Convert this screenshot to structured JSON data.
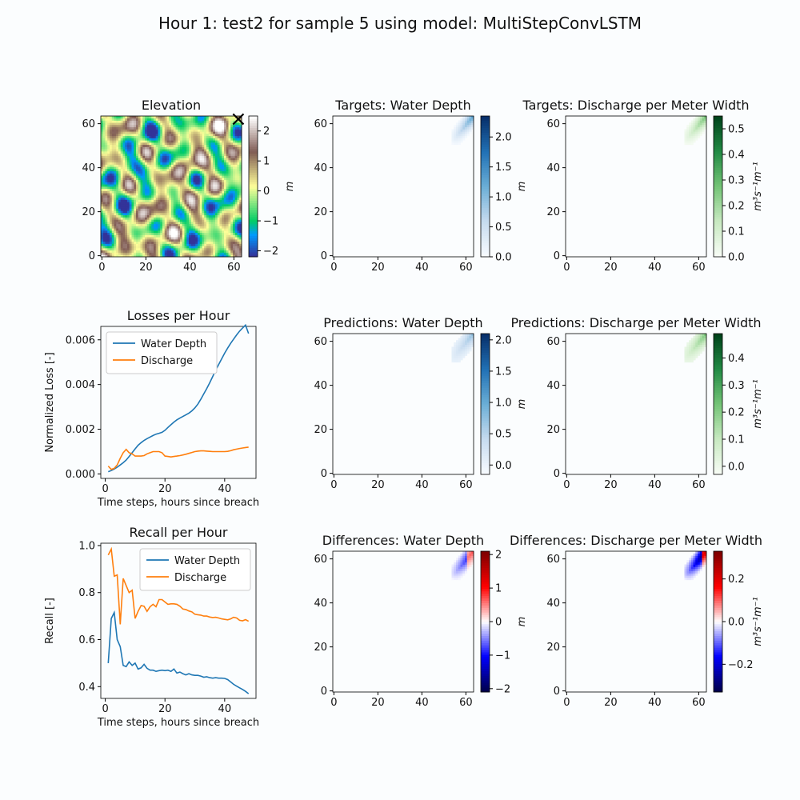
{
  "suptitle": "Hour 1: test2 for sample 5 using model: MultiStepConvLSTM",
  "colors": {
    "background": "#fbfdfe",
    "water_depth_line": "#1f77b4",
    "discharge_line": "#ff7f0e",
    "breach_marker": "#000000"
  },
  "chart_data": [
    {
      "id": "elevation",
      "type": "heatmap",
      "title": "Elevation",
      "colormap": "terrain",
      "xlim": [
        0,
        63
      ],
      "ylim": [
        0,
        63
      ],
      "xticks": [
        "0",
        "20",
        "40",
        "60"
      ],
      "yticks": [
        "0",
        "20",
        "40",
        "60"
      ],
      "colorbar": {
        "range": [
          -2.2,
          2.5
        ],
        "ticks": [
          "−2",
          "−1",
          "0",
          "1",
          "2"
        ],
        "label": "m"
      },
      "breach_marker": {
        "x": 62,
        "y": 62,
        "symbol": "×"
      }
    },
    {
      "id": "targets_depth",
      "type": "heatmap",
      "title": "Targets: Water Depth",
      "colormap": "Blues",
      "xlim": [
        0,
        63
      ],
      "ylim": [
        0,
        63
      ],
      "xticks": [
        "0",
        "20",
        "40",
        "60"
      ],
      "yticks": [
        "0",
        "20",
        "40",
        "60"
      ],
      "colorbar": {
        "range": [
          0,
          2.35
        ],
        "ticks": [
          "0.0",
          "0.5",
          "1.0",
          "1.5",
          "2.0"
        ],
        "label": "m"
      }
    },
    {
      "id": "targets_discharge",
      "type": "heatmap",
      "title": "Targets: Discharge per Meter Width",
      "colormap": "Greens",
      "xlim": [
        0,
        63
      ],
      "ylim": [
        0,
        63
      ],
      "xticks": [
        "0",
        "20",
        "40",
        "60"
      ],
      "yticks": [
        "0",
        "20",
        "40",
        "60"
      ],
      "colorbar": {
        "range": [
          0,
          0.55
        ],
        "ticks": [
          "0.0",
          "0.1",
          "0.2",
          "0.3",
          "0.4",
          "0.5"
        ],
        "label": "m³s⁻¹m⁻¹"
      }
    },
    {
      "id": "losses",
      "type": "line",
      "title": "Losses per Hour",
      "xlabel": "Time steps, hours since breach",
      "ylabel": "Normalized Loss [-]",
      "xlim": [
        -1.5,
        50.5
      ],
      "ylim": [
        -0.0002,
        0.0066
      ],
      "xticks": [
        0,
        20,
        40
      ],
      "yticks": [
        0,
        0.002,
        0.004,
        0.006
      ],
      "ytick_labels": [
        "0.000",
        "0.002",
        "0.004",
        "0.006"
      ],
      "legend": "top-left",
      "x": [
        1,
        2,
        3,
        4,
        5,
        6,
        7,
        8,
        9,
        10,
        11,
        12,
        13,
        14,
        15,
        16,
        17,
        18,
        19,
        20,
        21,
        22,
        23,
        24,
        25,
        26,
        27,
        28,
        29,
        30,
        31,
        32,
        33,
        34,
        35,
        36,
        37,
        38,
        39,
        40,
        41,
        42,
        43,
        44,
        45,
        46,
        47,
        48
      ],
      "series": [
        {
          "name": "Water Depth",
          "color": "#1f77b4",
          "values": [
            0.0001,
            0.00015,
            0.00022,
            0.0003,
            0.0004,
            0.0005,
            0.00062,
            0.00078,
            0.00095,
            0.00112,
            0.00128,
            0.0014,
            0.0015,
            0.00158,
            0.00165,
            0.00172,
            0.00178,
            0.00182,
            0.00186,
            0.00195,
            0.00208,
            0.0022,
            0.00232,
            0.00242,
            0.0025,
            0.00257,
            0.00264,
            0.00272,
            0.00282,
            0.00295,
            0.00312,
            0.00334,
            0.00358,
            0.00382,
            0.00408,
            0.00436,
            0.00464,
            0.0049,
            0.00515,
            0.0054,
            0.00563,
            0.00584,
            0.00603,
            0.00622,
            0.00639,
            0.00653,
            0.00666,
            0.00628
          ]
        },
        {
          "name": "Discharge",
          "color": "#ff7f0e",
          "values": [
            0.00035,
            0.0002,
            0.00025,
            0.0004,
            0.0007,
            0.00095,
            0.0011,
            0.00095,
            0.0009,
            0.0008,
            0.0008,
            0.0008,
            0.00082,
            0.0009,
            0.00095,
            0.001,
            0.001,
            0.001,
            0.00095,
            0.0008,
            0.00078,
            0.00076,
            0.00078,
            0.0008,
            0.00082,
            0.00085,
            0.00088,
            0.00092,
            0.00096,
            0.001,
            0.00102,
            0.00103,
            0.00103,
            0.00102,
            0.00101,
            0.001,
            0.001,
            0.001,
            0.001,
            0.001,
            0.00101,
            0.00104,
            0.00108,
            0.00111,
            0.00114,
            0.00116,
            0.00118,
            0.0012
          ]
        }
      ]
    },
    {
      "id": "predictions_depth",
      "type": "heatmap",
      "title": "Predictions: Water Depth",
      "colormap": "Blues",
      "xlim": [
        0,
        63
      ],
      "ylim": [
        0,
        63
      ],
      "xticks": [
        "0",
        "20",
        "40",
        "60"
      ],
      "yticks": [
        "0",
        "20",
        "40",
        "60"
      ],
      "colorbar": {
        "range": [
          -0.15,
          2.1
        ],
        "ticks": [
          "0.0",
          "0.5",
          "1.0",
          "1.5",
          "2.0"
        ],
        "label": "m"
      }
    },
    {
      "id": "predictions_discharge",
      "type": "heatmap",
      "title": "Predictions: Discharge per Meter Width",
      "colormap": "Greens",
      "xlim": [
        0,
        63
      ],
      "ylim": [
        0,
        63
      ],
      "xticks": [
        "0",
        "20",
        "40",
        "60"
      ],
      "yticks": [
        "0",
        "20",
        "40",
        "60"
      ],
      "colorbar": {
        "range": [
          -0.03,
          0.49
        ],
        "ticks": [
          "0.0",
          "0.1",
          "0.2",
          "0.3",
          "0.4"
        ],
        "label": "m³s⁻¹m⁻¹"
      }
    },
    {
      "id": "recall",
      "type": "line",
      "title": "Recall per Hour",
      "xlabel": "Time steps, hours since breach",
      "ylabel": "Recall [-]",
      "xlim": [
        -1.5,
        50.5
      ],
      "ylim": [
        0.35,
        1.01
      ],
      "xticks": [
        0,
        20,
        40
      ],
      "yticks": [
        0.4,
        0.6,
        0.8,
        1.0
      ],
      "ytick_labels": [
        "0.4",
        "0.6",
        "0.8",
        "1.0"
      ],
      "legend": "top-right",
      "x": [
        1,
        2,
        3,
        4,
        5,
        6,
        7,
        8,
        9,
        10,
        11,
        12,
        13,
        14,
        15,
        16,
        17,
        18,
        19,
        20,
        21,
        22,
        23,
        24,
        25,
        26,
        27,
        28,
        29,
        30,
        31,
        32,
        33,
        34,
        35,
        36,
        37,
        38,
        39,
        40,
        41,
        42,
        43,
        44,
        45,
        46,
        47,
        48
      ],
      "series": [
        {
          "name": "Water Depth",
          "color": "#1f77b4",
          "values": [
            0.5,
            0.69,
            0.715,
            0.6,
            0.57,
            0.49,
            0.485,
            0.505,
            0.49,
            0.5,
            0.475,
            0.48,
            0.495,
            0.478,
            0.47,
            0.47,
            0.465,
            0.468,
            0.47,
            0.468,
            0.47,
            0.465,
            0.475,
            0.458,
            0.462,
            0.455,
            0.45,
            0.455,
            0.45,
            0.448,
            0.448,
            0.445,
            0.44,
            0.442,
            0.438,
            0.436,
            0.438,
            0.436,
            0.436,
            0.435,
            0.43,
            0.42,
            0.41,
            0.402,
            0.395,
            0.388,
            0.38,
            0.37
          ]
        },
        {
          "name": "Discharge",
          "color": "#ff7f0e",
          "values": [
            0.96,
            0.985,
            0.87,
            0.875,
            0.665,
            0.86,
            0.83,
            0.8,
            0.81,
            0.69,
            0.72,
            0.745,
            0.742,
            0.72,
            0.74,
            0.75,
            0.74,
            0.77,
            0.77,
            0.76,
            0.75,
            0.752,
            0.752,
            0.75,
            0.742,
            0.73,
            0.728,
            0.722,
            0.718,
            0.708,
            0.706,
            0.704,
            0.7,
            0.7,
            0.696,
            0.694,
            0.695,
            0.692,
            0.688,
            0.686,
            0.684,
            0.688,
            0.695,
            0.692,
            0.682,
            0.68,
            0.685,
            0.678
          ]
        }
      ]
    },
    {
      "id": "differences_depth",
      "type": "heatmap",
      "title": "Differences: Water Depth",
      "colormap": "seismic",
      "xlim": [
        0,
        63
      ],
      "ylim": [
        0,
        63
      ],
      "xticks": [
        "0",
        "20",
        "40",
        "60"
      ],
      "yticks": [
        "0",
        "20",
        "40",
        "60"
      ],
      "colorbar": {
        "range": [
          -2.1,
          2.1
        ],
        "ticks": [
          "−2",
          "−1",
          "0",
          "1",
          "2"
        ],
        "label": "m"
      }
    },
    {
      "id": "differences_discharge",
      "type": "heatmap",
      "title": "Differences: Discharge per Meter Width",
      "colormap": "seismic",
      "xlim": [
        0,
        63
      ],
      "ylim": [
        0,
        63
      ],
      "xticks": [
        "0",
        "20",
        "40",
        "60"
      ],
      "yticks": [
        "0",
        "20",
        "40",
        "60"
      ],
      "colorbar": {
        "range": [
          -0.33,
          0.33
        ],
        "ticks": [
          "−0.2",
          "0.0",
          "0.2"
        ],
        "label": "m³s⁻¹m⁻¹"
      }
    }
  ]
}
